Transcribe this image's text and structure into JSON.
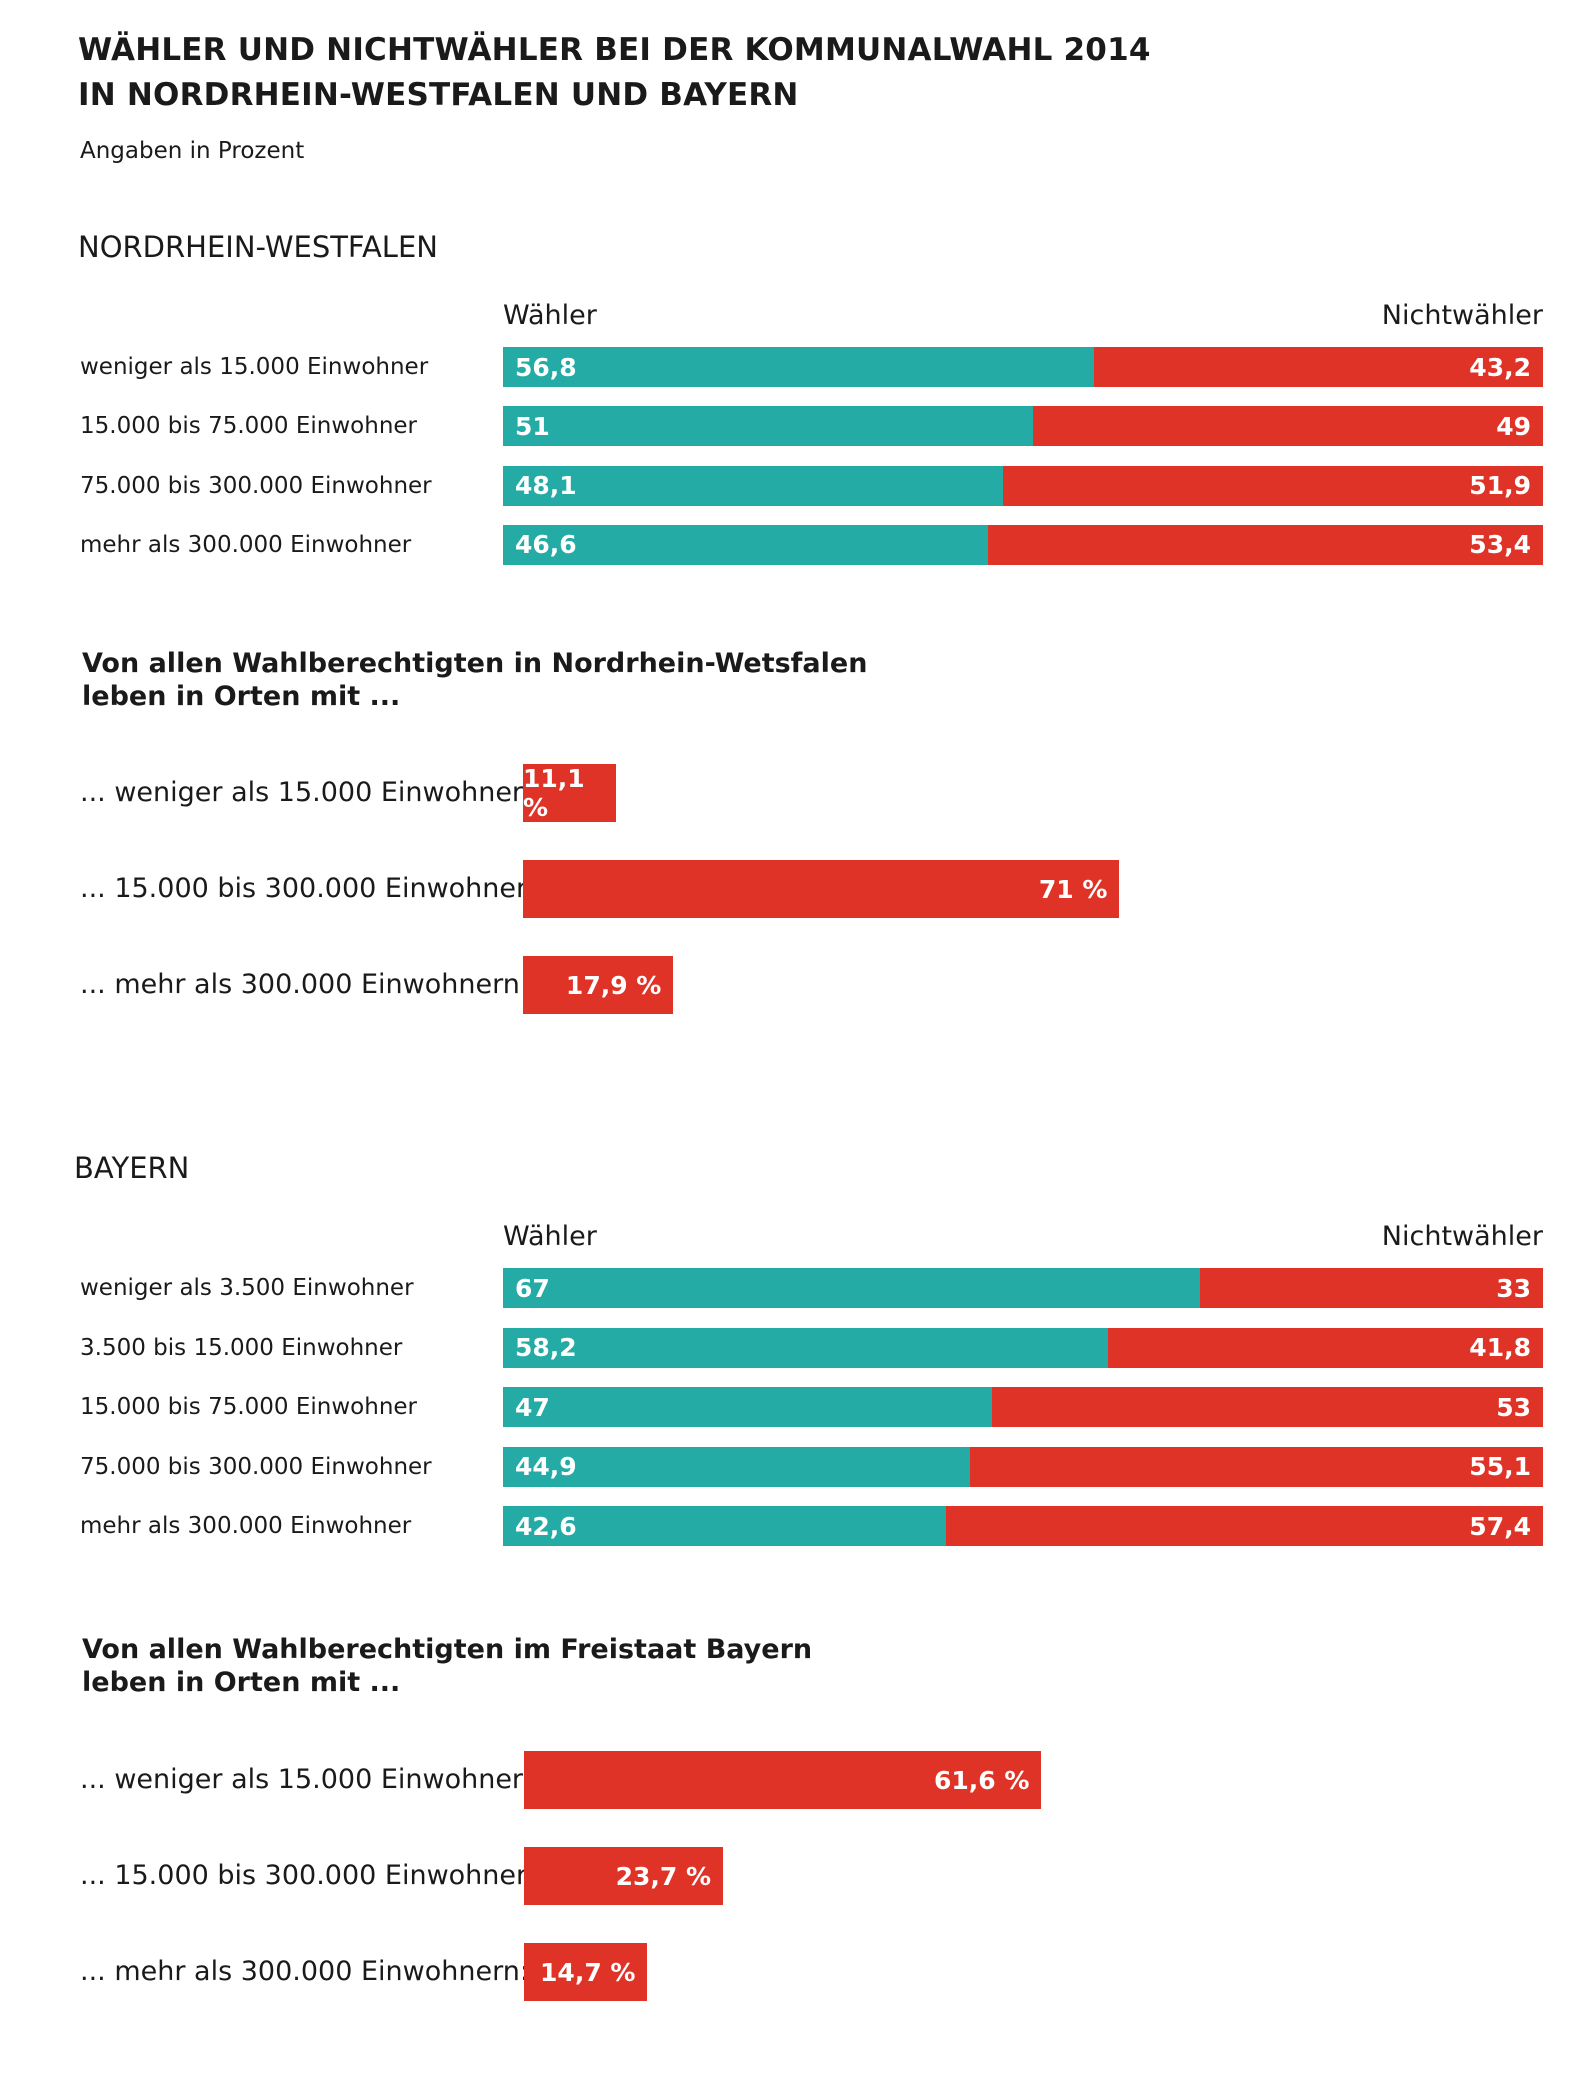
{
  "title_line1": "WÄHLER UND NICHTWÄHLER BEI DER KOMMUNALWAHL 2014",
  "title_line2": "IN NORDRHEIN-WESTFALEN UND BAYERN",
  "subtitle": "Angaben in Prozent",
  "colors": {
    "waehler": "#24aba6",
    "nichtwaehler": "#e03327"
  },
  "chart_data": [
    {
      "type": "bar",
      "stacked": true,
      "orientation": "horizontal",
      "title": "NORDRHEIN-WESTFALEN",
      "categories": [
        "weniger als 15.000 Einwohner",
        "15.000 bis 75.000 Einwohner",
        "75.000 bis 300.000 Einwohner",
        "mehr als 300.000 Einwohner"
      ],
      "series": [
        {
          "name": "Wähler",
          "values": [
            56.8,
            51,
            48.1,
            46.6
          ],
          "labels": [
            "56,8",
            "51",
            "48,1",
            "46,6"
          ]
        },
        {
          "name": "Nichtwähler",
          "values": [
            43.2,
            49,
            51.9,
            53.4
          ],
          "labels": [
            "43,2",
            "49",
            "51,9",
            "53,4"
          ]
        }
      ],
      "xlim": [
        0,
        100
      ]
    },
    {
      "type": "bar",
      "orientation": "horizontal",
      "title": "Von allen Wahlberechtigten in Nordrhein-Wetsfalen leben in Orten mit ...",
      "title_lines": [
        "Von allen Wahlberechtigten in Nordrhein-Wetsfalen",
        "leben in Orten mit ..."
      ],
      "categories": [
        "... weniger als 15.000 Einwohnern:",
        "... 15.000 bis 300.000 Einwohnern:",
        "... mehr als 300.000 Einwohnern:"
      ],
      "values": [
        11.1,
        71,
        17.9
      ],
      "labels": [
        "11,1 %",
        "71 %",
        "17,9 %"
      ],
      "xlim": [
        0,
        100
      ]
    },
    {
      "type": "bar",
      "stacked": true,
      "orientation": "horizontal",
      "title": "BAYERN",
      "categories": [
        "weniger als 3.500 Einwohner",
        "3.500 bis 15.000 Einwohner",
        "15.000 bis 75.000 Einwohner",
        "75.000 bis 300.000 Einwohner",
        "mehr als 300.000 Einwohner"
      ],
      "series": [
        {
          "name": "Wähler",
          "values": [
            67,
            58.2,
            47,
            44.9,
            42.6
          ],
          "labels": [
            "67",
            "58,2",
            "47",
            "44,9",
            "42,6"
          ]
        },
        {
          "name": "Nichtwähler",
          "values": [
            33,
            41.8,
            53,
            55.1,
            57.4
          ],
          "labels": [
            "33",
            "41,8",
            "53",
            "55,1",
            "57,4"
          ]
        }
      ],
      "xlim": [
        0,
        100
      ]
    },
    {
      "type": "bar",
      "orientation": "horizontal",
      "title": "Von allen Wahlberechtigten  im Freistaat Bayern leben in Orten mit ...",
      "title_lines": [
        "Von allen Wahlberechtigten  im Freistaat Bayern",
        "leben in Orten mit ..."
      ],
      "categories": [
        "... weniger als 15.000 Einwohnern:",
        "... 15.000 bis 300.000 Einwohnern:",
        "... mehr als 300.000 Einwohnern:"
      ],
      "values": [
        61.6,
        23.7,
        14.7
      ],
      "labels": [
        "61,6 %",
        "23,7 %",
        "14,7 %"
      ],
      "xlim": [
        0,
        100
      ]
    }
  ]
}
